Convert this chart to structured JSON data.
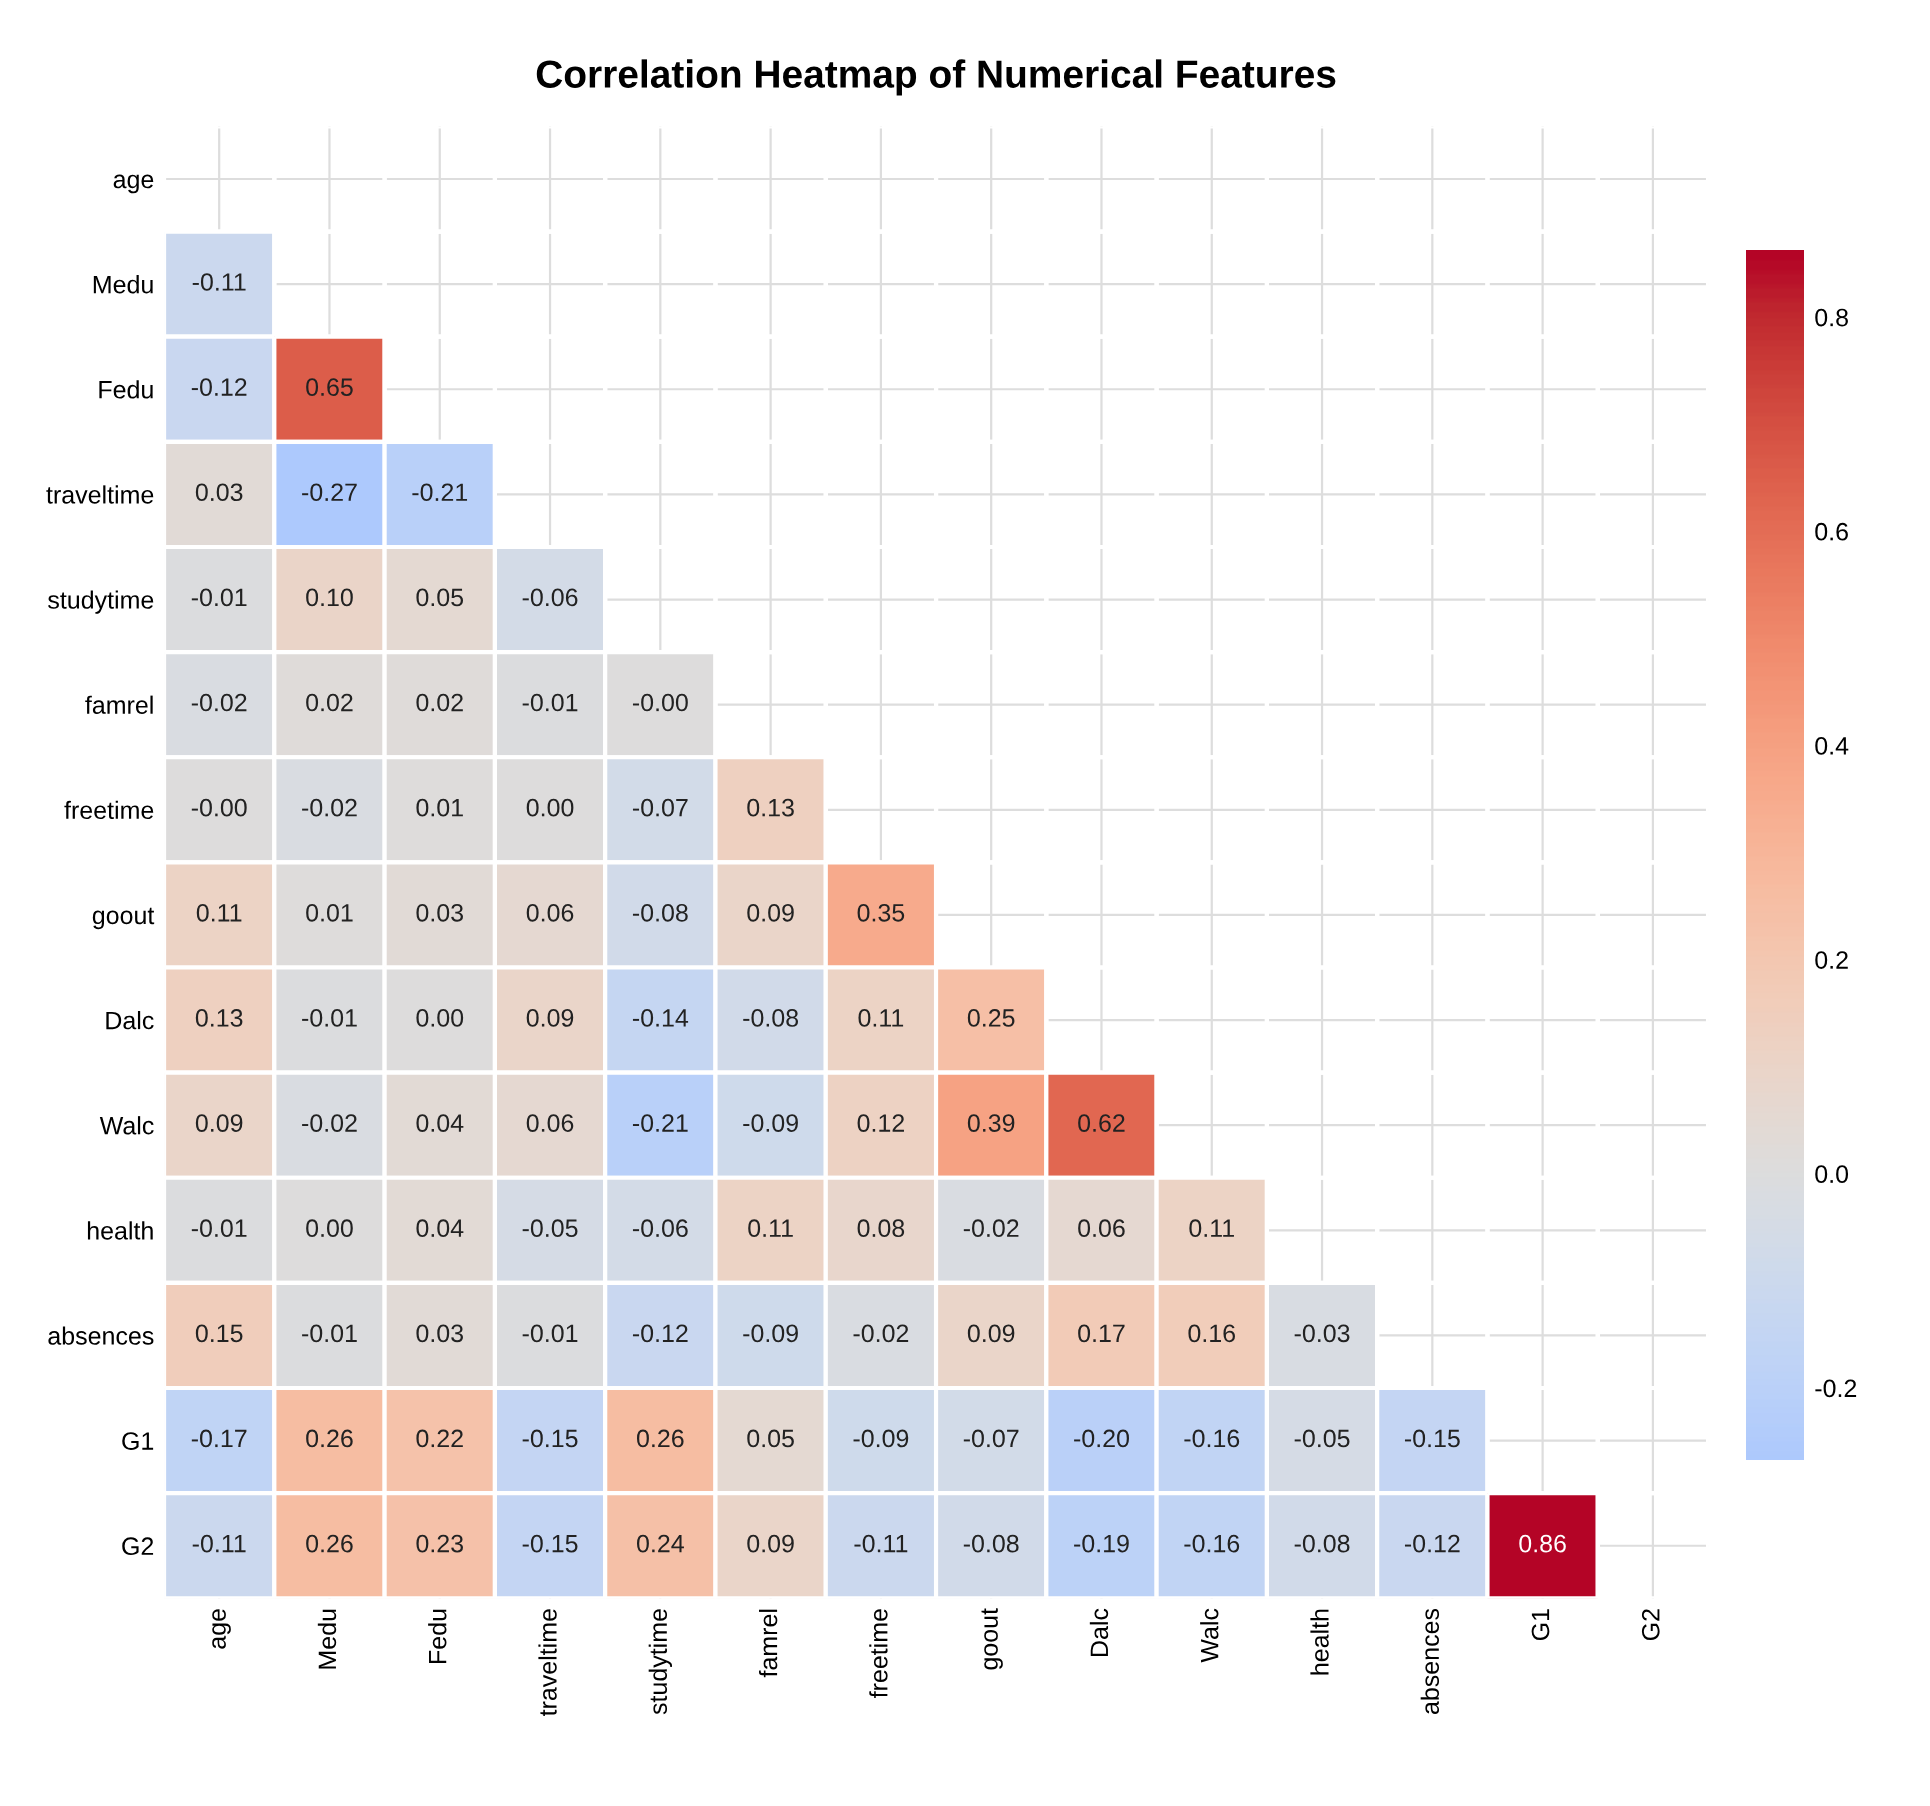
{
  "chart_data": {
    "type": "heatmap",
    "title": "Correlation Heatmap of Numerical Features",
    "categories": [
      "age",
      "Medu",
      "Fedu",
      "traveltime",
      "studytime",
      "famrel",
      "freetime",
      "goout",
      "Dalc",
      "Walc",
      "health",
      "absences",
      "G1",
      "G2"
    ],
    "y_categories": [
      "age",
      "Medu",
      "Fedu",
      "traveltime",
      "studytime",
      "famrel",
      "freetime",
      "goout",
      "Dalc",
      "Walc",
      "health",
      "absences",
      "G1",
      "G2"
    ],
    "cells": [
      [
        null,
        null,
        null,
        null,
        null,
        null,
        null,
        null,
        null,
        null,
        null,
        null,
        null,
        null
      ],
      [
        -0.11,
        null,
        null,
        null,
        null,
        null,
        null,
        null,
        null,
        null,
        null,
        null,
        null,
        null
      ],
      [
        -0.12,
        0.65,
        null,
        null,
        null,
        null,
        null,
        null,
        null,
        null,
        null,
        null,
        null,
        null
      ],
      [
        0.03,
        -0.27,
        -0.21,
        null,
        null,
        null,
        null,
        null,
        null,
        null,
        null,
        null,
        null,
        null
      ],
      [
        -0.01,
        0.1,
        0.05,
        -0.06,
        null,
        null,
        null,
        null,
        null,
        null,
        null,
        null,
        null,
        null
      ],
      [
        -0.02,
        0.02,
        0.02,
        -0.01,
        -0.0,
        null,
        null,
        null,
        null,
        null,
        null,
        null,
        null,
        null
      ],
      [
        -0.0,
        -0.02,
        0.01,
        0.0,
        -0.07,
        0.13,
        null,
        null,
        null,
        null,
        null,
        null,
        null,
        null
      ],
      [
        0.11,
        0.01,
        0.03,
        0.06,
        -0.08,
        0.09,
        0.35,
        null,
        null,
        null,
        null,
        null,
        null,
        null
      ],
      [
        0.13,
        -0.01,
        0.0,
        0.09,
        -0.14,
        -0.08,
        0.11,
        0.25,
        null,
        null,
        null,
        null,
        null,
        null
      ],
      [
        0.09,
        -0.02,
        0.04,
        0.06,
        -0.21,
        -0.09,
        0.12,
        0.39,
        0.62,
        null,
        null,
        null,
        null,
        null
      ],
      [
        -0.01,
        0.0,
        0.04,
        -0.05,
        -0.06,
        0.11,
        0.08,
        -0.02,
        0.06,
        0.11,
        null,
        null,
        null,
        null
      ],
      [
        0.15,
        -0.01,
        0.03,
        -0.01,
        -0.12,
        -0.09,
        -0.02,
        0.09,
        0.17,
        0.16,
        -0.03,
        null,
        null,
        null
      ],
      [
        -0.17,
        0.26,
        0.22,
        -0.15,
        0.26,
        0.05,
        -0.09,
        -0.07,
        -0.2,
        -0.16,
        -0.05,
        -0.15,
        null,
        null
      ],
      [
        -0.11,
        0.26,
        0.23,
        -0.15,
        0.24,
        0.09,
        -0.11,
        -0.08,
        -0.19,
        -0.16,
        -0.08,
        -0.12,
        0.86,
        null
      ]
    ],
    "cell_labels": [
      [
        null,
        null,
        null,
        null,
        null,
        null,
        null,
        null,
        null,
        null,
        null,
        null,
        null,
        null
      ],
      [
        "-0.11",
        null,
        null,
        null,
        null,
        null,
        null,
        null,
        null,
        null,
        null,
        null,
        null,
        null
      ],
      [
        "-0.12",
        "0.65",
        null,
        null,
        null,
        null,
        null,
        null,
        null,
        null,
        null,
        null,
        null,
        null
      ],
      [
        "0.03",
        "-0.27",
        "-0.21",
        null,
        null,
        null,
        null,
        null,
        null,
        null,
        null,
        null,
        null,
        null
      ],
      [
        "-0.01",
        "0.10",
        "0.05",
        "-0.06",
        null,
        null,
        null,
        null,
        null,
        null,
        null,
        null,
        null,
        null
      ],
      [
        "-0.02",
        "0.02",
        "0.02",
        "-0.01",
        "-0.00",
        null,
        null,
        null,
        null,
        null,
        null,
        null,
        null,
        null
      ],
      [
        "-0.00",
        "-0.02",
        "0.01",
        "0.00",
        "-0.07",
        "0.13",
        null,
        null,
        null,
        null,
        null,
        null,
        null,
        null
      ],
      [
        "0.11",
        "0.01",
        "0.03",
        "0.06",
        "-0.08",
        "0.09",
        "0.35",
        null,
        null,
        null,
        null,
        null,
        null,
        null
      ],
      [
        "0.13",
        "-0.01",
        "0.00",
        "0.09",
        "-0.14",
        "-0.08",
        "0.11",
        "0.25",
        null,
        null,
        null,
        null,
        null,
        null
      ],
      [
        "0.09",
        "-0.02",
        "0.04",
        "0.06",
        "-0.21",
        "-0.09",
        "0.12",
        "0.39",
        "0.62",
        null,
        null,
        null,
        null,
        null
      ],
      [
        "-0.01",
        "0.00",
        "0.04",
        "-0.05",
        "-0.06",
        "0.11",
        "0.08",
        "-0.02",
        "0.06",
        "0.11",
        null,
        null,
        null,
        null
      ],
      [
        "0.15",
        "-0.01",
        "0.03",
        "-0.01",
        "-0.12",
        "-0.09",
        "-0.02",
        "0.09",
        "0.17",
        "0.16",
        "-0.03",
        null,
        null,
        null
      ],
      [
        "-0.17",
        "0.26",
        "0.22",
        "-0.15",
        "0.26",
        "0.05",
        "-0.09",
        "-0.07",
        "-0.20",
        "-0.16",
        "-0.05",
        "-0.15",
        null,
        null
      ],
      [
        "-0.11",
        "0.26",
        "0.23",
        "-0.15",
        "0.24",
        "0.09",
        "-0.11",
        "-0.08",
        "-0.19",
        "-0.16",
        "-0.08",
        "-0.12",
        "0.86",
        null
      ]
    ],
    "clim": [
      -0.27,
      0.86
    ],
    "cticks": [
      -0.2,
      {
        "value": 0,
        "label": "0.0"
      },
      0.2,
      0.4,
      0.6,
      0.8
    ],
    "data_labels": true,
    "grid": true
  }
}
